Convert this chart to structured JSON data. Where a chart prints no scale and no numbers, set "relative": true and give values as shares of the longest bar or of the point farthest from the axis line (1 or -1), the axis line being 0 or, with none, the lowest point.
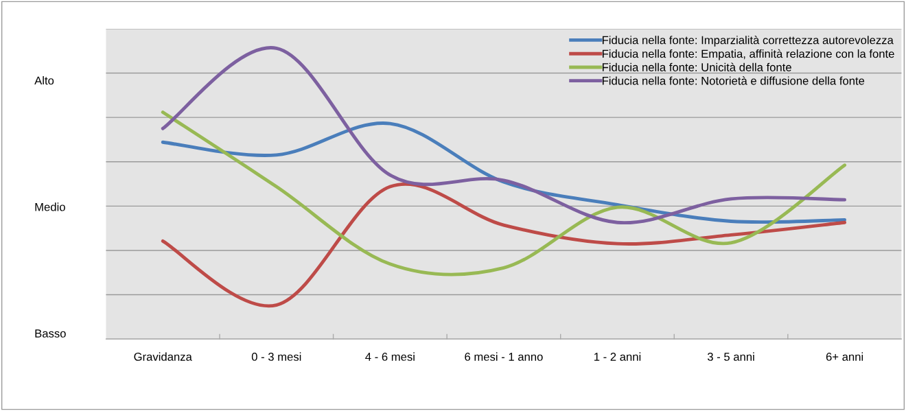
{
  "chart_data": {
    "type": "line",
    "categories": [
      "Gravidanza",
      "0 - 3 mesi",
      "4 - 6 mesi",
      "6 mesi - 1 anno",
      "1 - 2 anni",
      "3 - 5 anni",
      "6+ anni"
    ],
    "series": [
      {
        "name": "Fiducia nella fonte: Imparzialità correttezza autorevolezza",
        "color": "#4a7ebb",
        "values": [
          0.677,
          0.633,
          0.741,
          0.54,
          0.462,
          0.405,
          0.41
        ]
      },
      {
        "name": "Fiducia nella fonte: Empatia, affinità relazione con la fonte",
        "color": "#be4b48",
        "values": [
          0.337,
          0.117,
          0.524,
          0.392,
          0.328,
          0.358,
          0.401
        ]
      },
      {
        "name": "Fiducia nella fonte: Unicità della fonte",
        "color": "#98b954",
        "values": [
          0.78,
          0.524,
          0.258,
          0.245,
          0.453,
          0.331,
          0.598
        ]
      },
      {
        "name": "Fiducia nella fonte: Notorietà e diffusione della fonte",
        "color": "#7d60a0",
        "values": [
          0.724,
          1,
          0.564,
          0.546,
          0.401,
          0.482,
          0.479
        ]
      }
    ],
    "relative": true,
    "annotations": [
      "Alto",
      "Medio",
      "Basso"
    ],
    "grid": "y",
    "legend": "top right",
    "marker": "none",
    "line_style": "solid"
  }
}
